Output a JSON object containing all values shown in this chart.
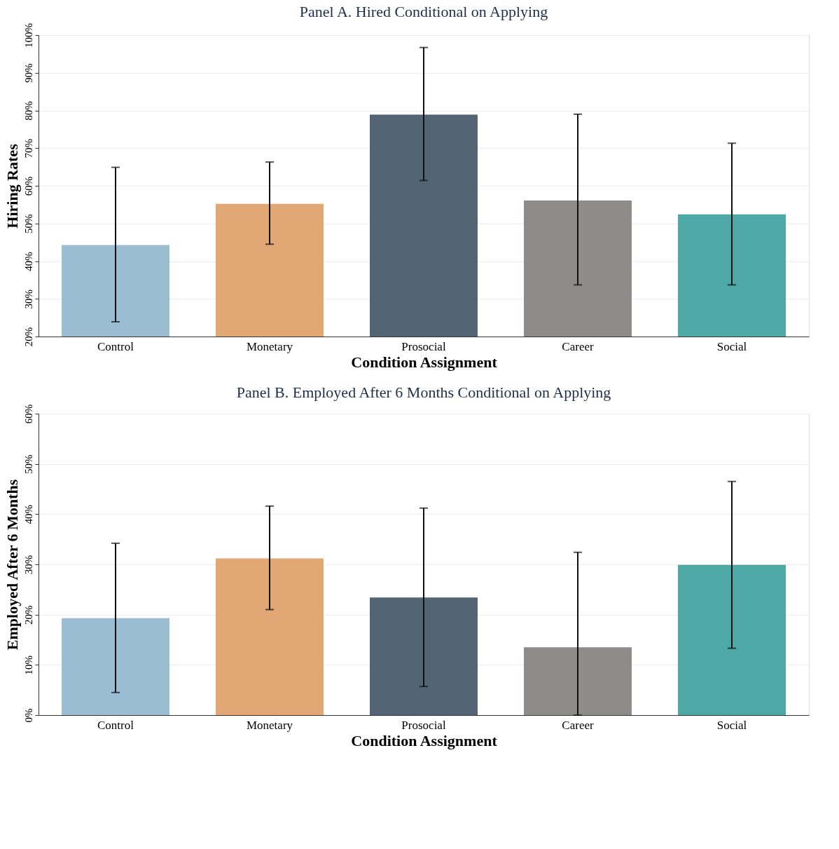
{
  "chart_data": [
    {
      "type": "bar",
      "title": "Panel A. Hired Conditional on Applying",
      "xlabel": "Condition Assignment",
      "ylabel": "Hiring Rates",
      "categories": [
        "Control",
        "Monetary",
        "Prosocial",
        "Career",
        "Social"
      ],
      "values": [
        44.3,
        55.2,
        78.9,
        56.1,
        52.4
      ],
      "colors": [
        "#9bbdd3",
        "#e1a774",
        "#536474",
        "#8f8b8a",
        "#4ea8a6"
      ],
      "errors": [
        [
          23.9,
          64.9
        ],
        [
          44.5,
          66.3
        ],
        [
          61.4,
          96.7
        ],
        [
          33.7,
          79.0
        ],
        [
          33.7,
          71.3
        ]
      ],
      "ylim": [
        20,
        100
      ],
      "yticks": [
        {
          "value": 20,
          "label": "20%"
        },
        {
          "value": 30,
          "label": "30%"
        },
        {
          "value": 40,
          "label": "40%"
        },
        {
          "value": 50,
          "label": "50%"
        },
        {
          "value": 60,
          "label": "60%"
        },
        {
          "value": 70,
          "label": "70%"
        },
        {
          "value": 80,
          "label": "80%"
        },
        {
          "value": 90,
          "label": "90%"
        },
        {
          "value": 100,
          "label": "100%"
        }
      ],
      "grid": "y",
      "legend": false
    },
    {
      "type": "bar",
      "title": "Panel B. Employed After 6 Months Conditional on Applying",
      "xlabel": "Condition Assignment",
      "ylabel": "Employed After 6 Months",
      "categories": [
        "Control",
        "Monetary",
        "Prosocial",
        "Career",
        "Social"
      ],
      "values": [
        19.3,
        31.2,
        23.4,
        13.5,
        29.9
      ],
      "colors": [
        "#9bbdd3",
        "#e1a774",
        "#536474",
        "#8f8b8a",
        "#4ea8a6"
      ],
      "errors": [
        [
          4.5,
          34.2
        ],
        [
          21.0,
          41.6
        ],
        [
          5.7,
          41.2
        ],
        [
          0,
          32.4
        ],
        [
          13.3,
          46.5
        ]
      ],
      "ylim": [
        0,
        60
      ],
      "yticks": [
        {
          "value": 0,
          "label": "0%"
        },
        {
          "value": 10,
          "label": "10%"
        },
        {
          "value": 20,
          "label": "20%"
        },
        {
          "value": 30,
          "label": "30%"
        },
        {
          "value": 40,
          "label": "40%"
        },
        {
          "value": 50,
          "label": "50%"
        },
        {
          "value": 60,
          "label": "60%"
        }
      ],
      "grid": "y",
      "legend": false
    }
  ]
}
